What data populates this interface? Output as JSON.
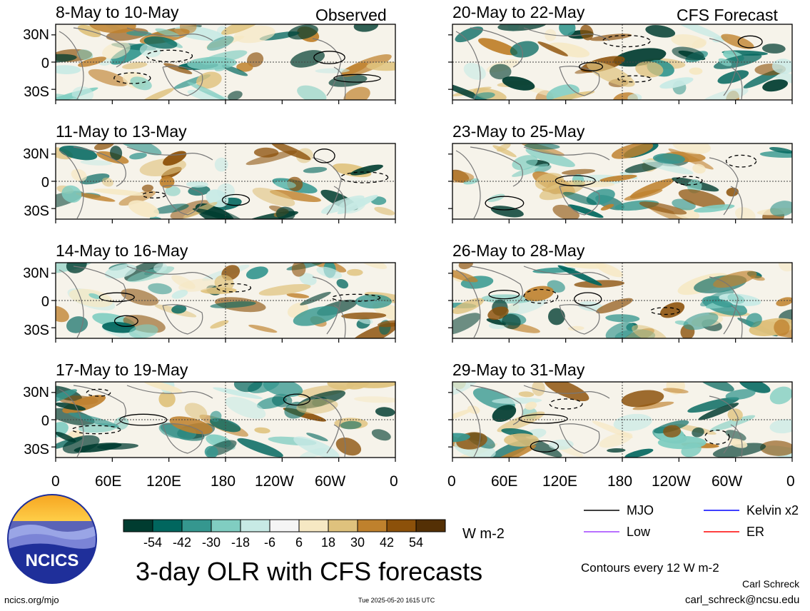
{
  "panel_labels": {
    "observed": "Observed",
    "forecast": "CFS Forecast"
  },
  "observed_periods": [
    "8-May to 10-May",
    "11-May to 13-May",
    "14-May to 16-May",
    "17-May to 19-May"
  ],
  "forecast_periods": [
    "20-May to 22-May",
    "23-May to 25-May",
    "26-May to 28-May",
    "29-May to 31-May"
  ],
  "lat_labels": [
    "30N",
    "0",
    "30S"
  ],
  "lon_labels": [
    "0",
    "60E",
    "120E",
    "180",
    "120W",
    "60W",
    "0"
  ],
  "colorbar": {
    "tick_labels": [
      "-54",
      "-42",
      "-30",
      "-18",
      "-6",
      "6",
      "18",
      "30",
      "42",
      "54"
    ],
    "colors": [
      "#003c30",
      "#01665e",
      "#35978f",
      "#80cdc1",
      "#c7eae5",
      "#f5f5f5",
      "#f6e8c3",
      "#dfc27d",
      "#bf812d",
      "#8c510a",
      "#543005"
    ],
    "units": "W m-2"
  },
  "contour_legend": [
    {
      "name": "MJO",
      "color": "#000000"
    },
    {
      "name": "Kelvin x2",
      "color": "#0000ff"
    },
    {
      "name": "Low",
      "color": "#a040ff"
    },
    {
      "name": "ER",
      "color": "#ff0000"
    }
  ],
  "contour_note": "Contours every 12 W m-2",
  "title": "3-day OLR with CFS forecasts",
  "logo_text": "NCICS",
  "author": "Carl Schreck",
  "email": "carl_schreck@ncsu.edu",
  "site": "ncics.org/mjo",
  "timestamp": "Tue 2025-05-20 1615 UTC"
}
